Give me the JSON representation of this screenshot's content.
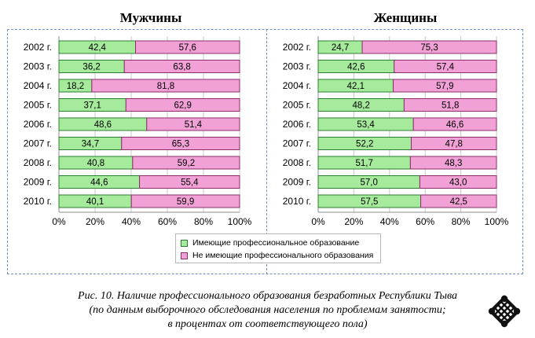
{
  "colors": {
    "green": "#a6ea9c",
    "green_border": "#2e7d32",
    "pink": "#f1a1d6",
    "pink_border": "#8b2e6a",
    "frame": "#6f8fc0",
    "grid": "#c8c8c8"
  },
  "legend": {
    "items": [
      {
        "label": "Имеющие профессиональное образование",
        "color": "#a6ea9c"
      },
      {
        "label": "Не имеющие профессионального образования",
        "color": "#f1a1d6"
      }
    ]
  },
  "caption": {
    "line1": "Рис. 10. Наличие профессионального образования безработных Республики Тыва",
    "line2": "(по данным выборочного обследования населения по проблемам занятости;",
    "line3": "в процентах от соответствующего пола)"
  },
  "logo": {
    "icon": "endless-knot-icon"
  },
  "chart_data": [
    {
      "type": "bar",
      "orientation": "horizontal",
      "stacked": true,
      "title": "Мужчины",
      "categories": [
        "2002 г.",
        "2003 г.",
        "2004 г.",
        "2005 г.",
        "2006 г.",
        "2007 г.",
        "2008 г.",
        "2009 г.",
        "2010 г."
      ],
      "category_labels": [
        "2002 г.",
        "2003 г.",
        "2004 г.",
        "2005 г.",
        "2006 г.",
        "2007 г.",
        "2008 г.",
        "2009 г.",
        "2010 г."
      ],
      "series": [
        {
          "name": "Имеющие профессиональное образование",
          "values": [
            42.4,
            36.2,
            18.2,
            37.1,
            48.6,
            34.7,
            40.8,
            44.6,
            40.1
          ],
          "labels": [
            "42,4",
            "36,2",
            "18,2",
            "37,1",
            "48,6",
            "34,7",
            "40,8",
            "44,6",
            "40,1"
          ]
        },
        {
          "name": "Не имеющие профессионального образования",
          "values": [
            57.6,
            63.8,
            81.8,
            62.9,
            51.4,
            65.3,
            59.2,
            55.4,
            59.9
          ],
          "labels": [
            "57,6",
            "63,8",
            "81,8",
            "62,9",
            "51,4",
            "65,3",
            "59,2",
            "55,4",
            "59,9"
          ]
        }
      ],
      "xlim": [
        0,
        100
      ],
      "xticks": [
        "0%",
        "20%",
        "40%",
        "60%",
        "80%",
        "100%"
      ],
      "grid": true
    },
    {
      "type": "bar",
      "orientation": "horizontal",
      "stacked": true,
      "title": "Женщины",
      "categories": [
        "2002 г.",
        "2003 г.",
        "2004 г.",
        "2005 г.",
        "2006 г.",
        "2007 г.",
        "2008 г.",
        "2009 г.",
        "2010 г."
      ],
      "category_labels": [
        "2002 г.",
        "2003 г.",
        "2004 г.",
        "2005 г.",
        "2006 г.",
        "2007 г.",
        "2008 г.",
        "2009 г.",
        "2010 г."
      ],
      "series": [
        {
          "name": "Имеющие профессиональное образование",
          "values": [
            24.7,
            42.6,
            42.1,
            48.2,
            53.4,
            52.2,
            51.7,
            57.0,
            57.5
          ],
          "labels": [
            "24,7",
            "42,6",
            "42,1",
            "48,2",
            "53,4",
            "52,2",
            "51,7",
            "57,0",
            "57,5"
          ]
        },
        {
          "name": "Не имеющие профессионального образования",
          "values": [
            75.3,
            57.4,
            57.9,
            51.8,
            46.6,
            47.8,
            48.3,
            43.0,
            42.5
          ],
          "labels": [
            "75,3",
            "57,4",
            "57,9",
            "51,8",
            "46,6",
            "47,8",
            "48,3",
            "43,0",
            "42,5"
          ]
        }
      ],
      "xlim": [
        0,
        100
      ],
      "xticks": [
        "0%",
        "20%",
        "40%",
        "60%",
        "80%",
        "100%"
      ],
      "grid": true
    }
  ]
}
